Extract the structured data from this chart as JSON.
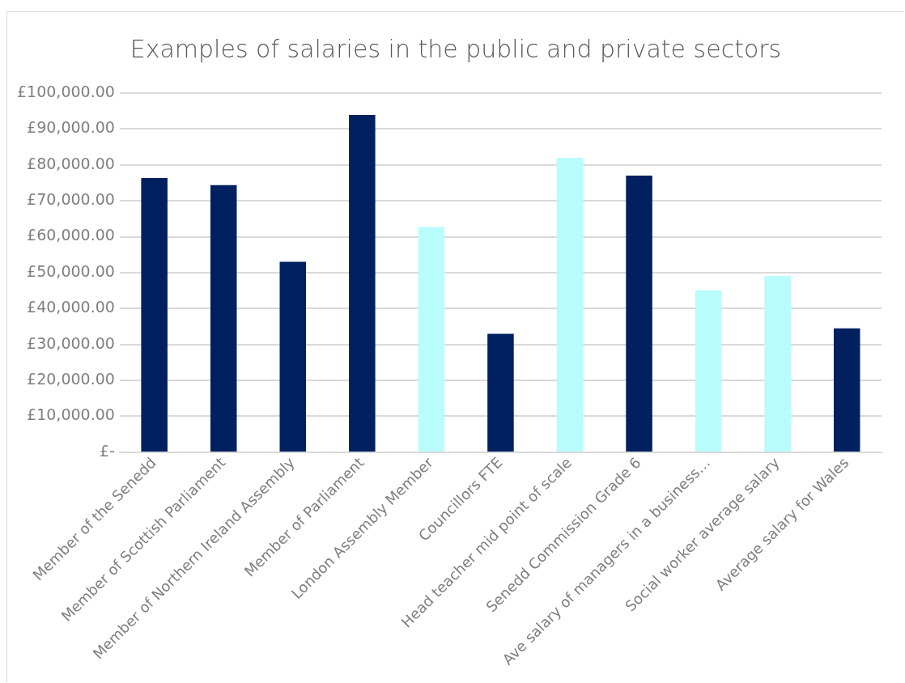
{
  "chart_data": {
    "type": "bar",
    "title": "Examples of salaries in the public and private sectors",
    "categories": [
      "Member of the Senedd",
      "Member of Scottish Parliament",
      "Member of Northern Ireland Assembly",
      "Member of Parliament",
      "London Assembly Member",
      "Councillors FTE",
      "Head teacher mid point of scale",
      "Senedd Commission Grade 6",
      "Ave salary of managers in a business…",
      "Social worker average salary",
      "Average salary for Wales"
    ],
    "values": [
      76350,
      74400,
      53050,
      93900,
      62700,
      33000,
      82000,
      77000,
      45100,
      49100,
      34500
    ],
    "colors": [
      "#002060",
      "#002060",
      "#002060",
      "#002060",
      "#b9fcfc",
      "#002060",
      "#b9fcfc",
      "#002060",
      "#b9fcfc",
      "#b9fcfc",
      "#002060"
    ],
    "ylim": [
      0,
      100000
    ],
    "yticks": [
      {
        "value": 0,
        "label": "£-"
      },
      {
        "value": 10000,
        "label": "£10,000.00"
      },
      {
        "value": 20000,
        "label": "£20,000.00"
      },
      {
        "value": 30000,
        "label": "£30,000.00"
      },
      {
        "value": 40000,
        "label": "£40,000.00"
      },
      {
        "value": 50000,
        "label": "£50,000.00"
      },
      {
        "value": 60000,
        "label": "£60,000.00"
      },
      {
        "value": 70000,
        "label": "£70,000.00"
      },
      {
        "value": 80000,
        "label": "£80,000.00"
      },
      {
        "value": 90000,
        "label": "£90,000.00"
      },
      {
        "value": 100000,
        "label": "£100,000.00"
      }
    ],
    "grid": "y",
    "legend": false
  }
}
